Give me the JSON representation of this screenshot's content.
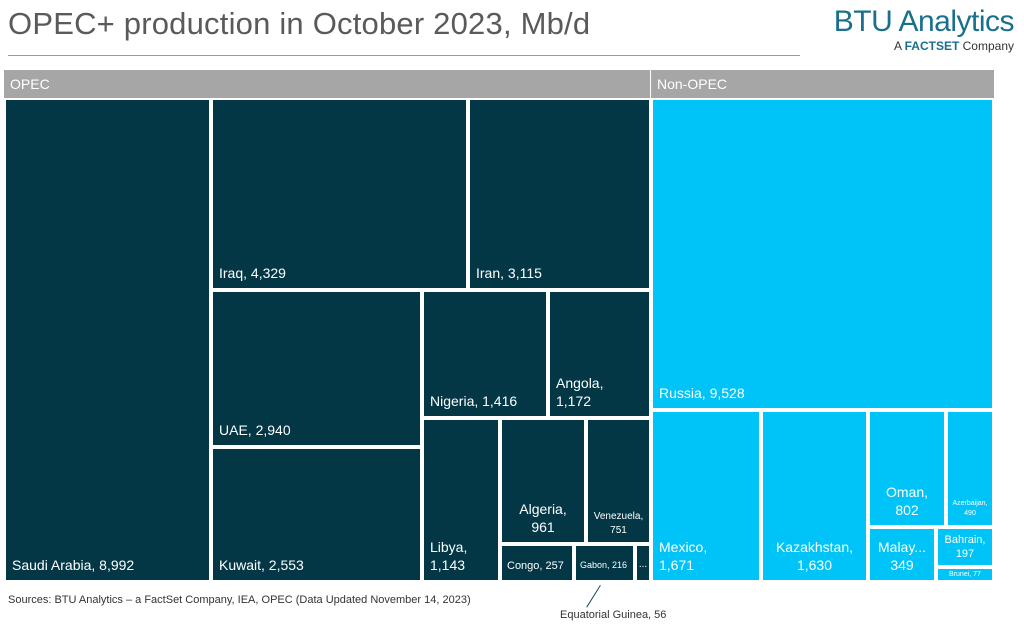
{
  "header": {
    "title": "OPEC+ production in October 2023, Mb/d",
    "brand": "BTU Analytics",
    "brand_sub_prefix": "A ",
    "brand_sub_bold": "FACTSET",
    "brand_sub_suffix": " Company"
  },
  "groups": {
    "opec": "OPEC",
    "non_opec": "Non-OPEC"
  },
  "colors": {
    "opec": "#033746",
    "non_opec": "#00c3f7",
    "group_header": "#a6a6a6"
  },
  "chart_data": {
    "type": "treemap",
    "title": "OPEC+ production in October 2023, Mb/d",
    "groups": [
      {
        "name": "OPEC",
        "items": [
          {
            "name": "Saudi Arabia",
            "value": 8992
          },
          {
            "name": "Iraq",
            "value": 4329
          },
          {
            "name": "Iran",
            "value": 3115
          },
          {
            "name": "UAE",
            "value": 2940
          },
          {
            "name": "Kuwait",
            "value": 2553
          },
          {
            "name": "Nigeria",
            "value": 1416
          },
          {
            "name": "Angola",
            "value": 1172
          },
          {
            "name": "Libya",
            "value": 1143
          },
          {
            "name": "Algeria",
            "value": 961
          },
          {
            "name": "Venezuela",
            "value": 751
          },
          {
            "name": "Congo",
            "value": 257
          },
          {
            "name": "Gabon",
            "value": 216
          },
          {
            "name": "Equatorial Guinea",
            "value": 56
          }
        ]
      },
      {
        "name": "Non-OPEC",
        "items": [
          {
            "name": "Russia",
            "value": 9528
          },
          {
            "name": "Mexico",
            "value": 1671
          },
          {
            "name": "Kazakhstan",
            "value": 1630
          },
          {
            "name": "Oman",
            "value": 802
          },
          {
            "name": "Malaysia",
            "value": 349
          },
          {
            "name": "Azerbaijan",
            "value": 490
          },
          {
            "name": "Bahrain",
            "value": 197
          },
          {
            "name": "Brunei",
            "value": 77
          }
        ]
      }
    ]
  },
  "labels": {
    "saudi": "Saudi Arabia,  8,992",
    "iraq": "Iraq,  4,329",
    "iran": "Iran,  3,115",
    "uae": "UAE,  2,940",
    "kuwait": "Kuwait,  2,553",
    "nigeria": "Nigeria,  1,416",
    "angola_1": "Angola,",
    "angola_2": "1,172",
    "libya_1": "Libya,",
    "libya_2": "1,143",
    "algeria_1": "Algeria,",
    "algeria_2": "961",
    "venezuela_1": "Venezuela,",
    "venezuela_2": "751",
    "congo": "Congo,  257",
    "gabon": "Gabon,  216",
    "eq_guinea": "...",
    "russia": "Russia,  9,528",
    "mexico_1": "Mexico,",
    "mexico_2": "1,671",
    "kazakhstan_1": "Kazakhstan,",
    "kazakhstan_2": "1,630",
    "oman_1": "Oman,",
    "oman_2": "802",
    "malaysia_1": "Malay...",
    "malaysia_2": "349",
    "azerbaijan_1": "Azerbaijan,",
    "azerbaijan_2": "490",
    "bahrain_1": "Bahrain,",
    "bahrain_2": "197",
    "brunei": "Brunei,  77"
  },
  "callout": "Equatorial Guinea, 56",
  "source": "Sources: BTU Analytics – a FactSet Company, IEA, OPEC (Data Updated November 14, 2023)"
}
